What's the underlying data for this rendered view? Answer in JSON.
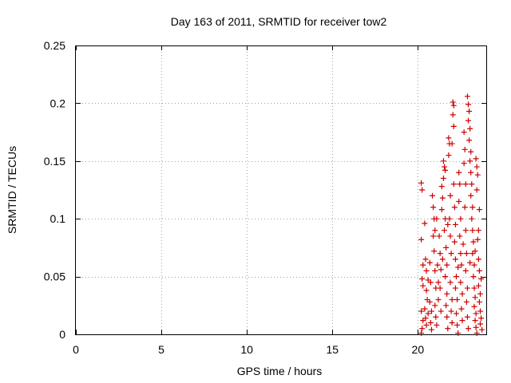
{
  "chart_data": {
    "type": "scatter",
    "title": "Day 163 of 2011, SRMTID for receiver tow2",
    "xlabel": "GPS time / hours",
    "ylabel": "SRMTID / TECUs",
    "xlim": [
      0,
      24
    ],
    "ylim": [
      0,
      0.25
    ],
    "xticks": [
      0,
      5,
      10,
      15,
      20
    ],
    "xtick_labels": [
      "0",
      "5",
      "10",
      "15",
      "20"
    ],
    "yticks": [
      0,
      0.05,
      0.1,
      0.15,
      0.2,
      0.25
    ],
    "ytick_labels": [
      "0",
      "0.05",
      "0.1",
      "0.15",
      "0.2",
      "0.25"
    ],
    "grid": true,
    "marker": "+",
    "colors": {
      "points": "#cc0000",
      "grid": "#a0a0a0",
      "axes": "#000000"
    },
    "series": [
      {
        "name": "SRMTID",
        "points": [
          [
            20.2,
            0.131
          ],
          [
            20.25,
            0.125
          ],
          [
            20.2,
            0.082
          ],
          [
            20.3,
            0.06
          ],
          [
            20.25,
            0.048
          ],
          [
            20.3,
            0.042
          ],
          [
            20.2,
            0.02
          ],
          [
            20.3,
            0.012
          ],
          [
            20.25,
            0.005
          ],
          [
            20.2,
            0.001
          ],
          [
            20.4,
            0.096
          ],
          [
            20.45,
            0.065
          ],
          [
            20.5,
            0.055
          ],
          [
            20.5,
            0.038
          ],
          [
            20.4,
            0.022
          ],
          [
            20.45,
            0.014
          ],
          [
            20.5,
            0.008
          ],
          [
            20.6,
            0.047
          ],
          [
            20.55,
            0.03
          ],
          [
            20.6,
            0.018
          ],
          [
            20.7,
            0.062
          ],
          [
            20.75,
            0.045
          ],
          [
            20.7,
            0.028
          ],
          [
            20.8,
            0.02
          ],
          [
            20.75,
            0.01
          ],
          [
            20.8,
            0.004
          ],
          [
            20.85,
            0.12
          ],
          [
            20.9,
            0.11
          ],
          [
            20.95,
            0.1
          ],
          [
            20.9,
            0.085
          ],
          [
            21.0,
            0.09
          ],
          [
            20.95,
            0.072
          ],
          [
            21.0,
            0.055
          ],
          [
            21.05,
            0.04
          ],
          [
            21.0,
            0.025
          ],
          [
            21.05,
            0.015
          ],
          [
            21.1,
            0.008
          ],
          [
            21.15,
            0.06
          ],
          [
            21.2,
            0.045
          ],
          [
            21.2,
            0.03
          ],
          [
            21.3,
            0.07
          ],
          [
            21.35,
            0.056
          ],
          [
            21.3,
            0.04
          ],
          [
            21.4,
            0.128
          ],
          [
            21.45,
            0.118
          ],
          [
            21.4,
            0.108
          ],
          [
            21.5,
            0.15
          ],
          [
            21.55,
            0.145
          ],
          [
            21.5,
            0.135
          ],
          [
            21.6,
            0.142
          ],
          [
            21.6,
            0.1
          ],
          [
            21.55,
            0.09
          ],
          [
            21.65,
            0.075
          ],
          [
            21.7,
            0.06
          ],
          [
            21.6,
            0.05
          ],
          [
            21.7,
            0.035
          ],
          [
            21.65,
            0.025
          ],
          [
            21.7,
            0.015
          ],
          [
            21.75,
            0.005
          ],
          [
            21.8,
            0.17
          ],
          [
            21.85,
            0.165
          ],
          [
            21.8,
            0.155
          ],
          [
            21.9,
            0.12
          ],
          [
            21.85,
            0.1
          ],
          [
            21.9,
            0.085
          ],
          [
            21.95,
            0.07
          ],
          [
            21.9,
            0.045
          ],
          [
            22.0,
            0.03
          ],
          [
            21.95,
            0.02
          ],
          [
            22.0,
            0.01
          ],
          [
            22.05,
            0.201
          ],
          [
            22.1,
            0.198
          ],
          [
            22.05,
            0.19
          ],
          [
            22.1,
            0.18
          ],
          [
            22.0,
            0.165
          ],
          [
            22.1,
            0.13
          ],
          [
            22.15,
            0.11
          ],
          [
            22.2,
            0.095
          ],
          [
            22.15,
            0.08
          ],
          [
            22.2,
            0.065
          ],
          [
            22.25,
            0.05
          ],
          [
            22.2,
            0.04
          ],
          [
            22.3,
            0.03
          ],
          [
            22.25,
            0.018
          ],
          [
            22.3,
            0.008
          ],
          [
            22.35,
            0.001
          ],
          [
            22.4,
            0.14
          ],
          [
            22.45,
            0.13
          ],
          [
            22.4,
            0.115
          ],
          [
            22.5,
            0.1
          ],
          [
            22.45,
            0.085
          ],
          [
            22.5,
            0.07
          ],
          [
            22.55,
            0.06
          ],
          [
            22.5,
            0.045
          ],
          [
            22.6,
            0.035
          ],
          [
            22.55,
            0.022
          ],
          [
            22.6,
            0.012
          ],
          [
            22.7,
            0.175
          ],
          [
            22.75,
            0.16
          ],
          [
            22.7,
            0.148
          ],
          [
            22.8,
            0.13
          ],
          [
            22.75,
            0.11
          ],
          [
            22.8,
            0.09
          ],
          [
            22.85,
            0.07
          ],
          [
            22.8,
            0.055
          ],
          [
            22.9,
            0.04
          ],
          [
            22.85,
            0.028
          ],
          [
            22.9,
            0.015
          ],
          [
            22.95,
            0.005
          ],
          [
            22.9,
            0.206
          ],
          [
            22.95,
            0.199
          ],
          [
            23.0,
            0.193
          ],
          [
            22.95,
            0.185
          ],
          [
            23.05,
            0.178
          ],
          [
            23.0,
            0.168
          ],
          [
            23.1,
            0.158
          ],
          [
            23.05,
            0.15
          ],
          [
            23.1,
            0.14
          ],
          [
            23.15,
            0.13
          ],
          [
            23.1,
            0.12
          ],
          [
            23.2,
            0.11
          ],
          [
            23.15,
            0.1
          ],
          [
            23.2,
            0.09
          ],
          [
            23.25,
            0.08
          ],
          [
            23.2,
            0.07
          ],
          [
            23.3,
            0.06
          ],
          [
            23.25,
            0.05
          ],
          [
            23.3,
            0.04
          ],
          [
            23.35,
            0.032
          ],
          [
            23.3,
            0.024
          ],
          [
            23.4,
            0.018
          ],
          [
            23.35,
            0.012
          ],
          [
            23.4,
            0.006
          ],
          [
            23.45,
            0.001
          ],
          [
            23.4,
            0.152
          ],
          [
            23.45,
            0.145
          ],
          [
            23.5,
            0.138
          ],
          [
            23.45,
            0.125
          ],
          [
            23.55,
            0.09
          ],
          [
            23.5,
            0.082
          ],
          [
            23.55,
            0.065
          ],
          [
            23.6,
            0.055
          ],
          [
            23.55,
            0.042
          ],
          [
            23.65,
            0.035
          ],
          [
            23.6,
            0.028
          ],
          [
            23.65,
            0.02
          ],
          [
            23.7,
            0.014
          ],
          [
            23.65,
            0.009
          ],
          [
            23.75,
            0.004
          ],
          [
            23.7,
            0.048
          ],
          [
            21.1,
            0.1
          ],
          [
            21.25,
            0.085
          ],
          [
            21.45,
            0.065
          ],
          [
            21.75,
            0.095
          ],
          [
            22.35,
            0.058
          ],
          [
            22.65,
            0.078
          ],
          [
            23.05,
            0.062
          ],
          [
            23.35,
            0.072
          ],
          [
            23.6,
            0.108
          ],
          [
            21.35,
            0.02
          ]
        ]
      }
    ]
  }
}
